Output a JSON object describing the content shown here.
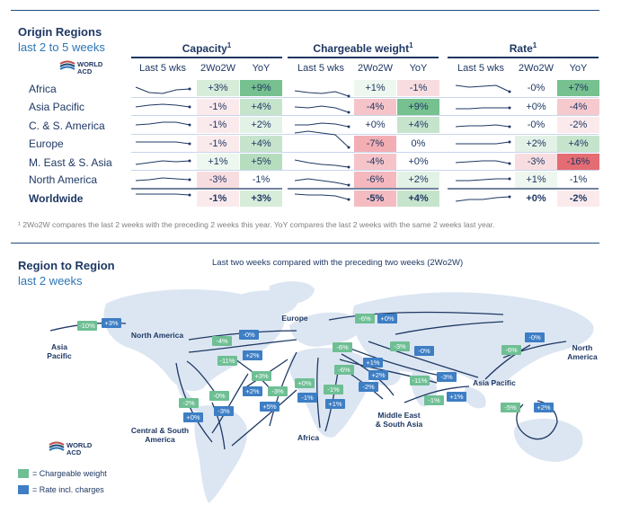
{
  "origin": {
    "title": "Origin Regions",
    "subtitle": "last 2 to 5 weeks",
    "logo": {
      "line1": "WORLD",
      "line2": "ACD"
    },
    "groups": [
      {
        "name": "Capacity",
        "sup": "1"
      },
      {
        "name": "Chargeable weight",
        "sup": "1"
      },
      {
        "name": "Rate",
        "sup": "1"
      }
    ],
    "col_headers": [
      "Last 5 wks",
      "2Wo2W",
      "YoY"
    ],
    "rows": [
      {
        "label": "Africa",
        "cap": [
          "+3%",
          "+9%"
        ],
        "cw": [
          "+1%",
          "-1%"
        ],
        "rate": [
          "-0%",
          "+7%"
        ]
      },
      {
        "label": "Asia Pacific",
        "cap": [
          "-1%",
          "+4%"
        ],
        "cw": [
          "-4%",
          "+9%"
        ],
        "rate": [
          "+0%",
          "-4%"
        ]
      },
      {
        "label": "C. & S. America",
        "cap": [
          "-1%",
          "+2%"
        ],
        "cw": [
          "+0%",
          "+4%"
        ],
        "rate": [
          "-0%",
          "-2%"
        ]
      },
      {
        "label": "Europe",
        "cap": [
          "-1%",
          "+4%"
        ],
        "cw": [
          "-7%",
          "0%"
        ],
        "rate": [
          "+2%",
          "+4%"
        ]
      },
      {
        "label": "M. East & S. Asia",
        "cap": [
          "+1%",
          "+5%"
        ],
        "cw": [
          "-4%",
          "+0%"
        ],
        "rate": [
          "-3%",
          "-16%"
        ]
      },
      {
        "label": "North America",
        "cap": [
          "-3%",
          "-1%"
        ],
        "cw": [
          "-6%",
          "+2%"
        ],
        "rate": [
          "+1%",
          "-1%"
        ]
      },
      {
        "label": "Worldwide",
        "cap": [
          "-1%",
          "+3%"
        ],
        "cw": [
          "-5%",
          "+4%"
        ],
        "rate": [
          "+0%",
          "-2%"
        ]
      }
    ],
    "footnote": "¹ 2Wo2W compares the last 2 weeks with the preceding 2 weeks this year. YoY compares the last 2 weeks with the same 2 weeks last year."
  },
  "region": {
    "title": "Region to Region",
    "subtitle": "last 2 weeks",
    "map_caption": "Last two weeks compared with the preceding two weeks (2Wo2W)",
    "labels": {
      "asia_pacific_w": [
        "Asia",
        "Pacific"
      ],
      "north_america_w": "North America",
      "europe": "Europe",
      "north_america_e": [
        "North",
        "America"
      ],
      "asia_pacific_e": "Asia Pacific",
      "central_south_america": [
        "Central & South",
        "America"
      ],
      "africa": "Africa",
      "middle_east": [
        "Middle East",
        "& South Asia"
      ]
    },
    "chips": [
      "-10%",
      "+3%",
      "-4%",
      "-0%",
      "-11%",
      "+2%",
      "+3%",
      "+2%",
      "-2%",
      "+0%",
      "-0%",
      "-3%",
      "-3%",
      "+5%",
      "+0%",
      "-1%",
      "-1%",
      "+1%",
      "-6%",
      "+0%",
      "-6%",
      "+1%",
      "-6%",
      "-2%",
      "-3%",
      "-0%",
      "-11%",
      "+2%",
      "-1%",
      "+1%",
      "-3%",
      "-6%",
      "-0%",
      "-5%",
      "+2%"
    ],
    "logo": {
      "line1": "WORLD",
      "line2": "ACD"
    },
    "legend": {
      "cw": "= Chargeable weight",
      "rate": "= Rate incl. charges"
    }
  },
  "colors": {
    "green_strong": "#76c18f",
    "green_light": "#d7ecd9",
    "pink": "#f8dde0",
    "red_light": "#f3b2b8",
    "red_strong": "#e46c72",
    "navy": "#1f3864"
  }
}
